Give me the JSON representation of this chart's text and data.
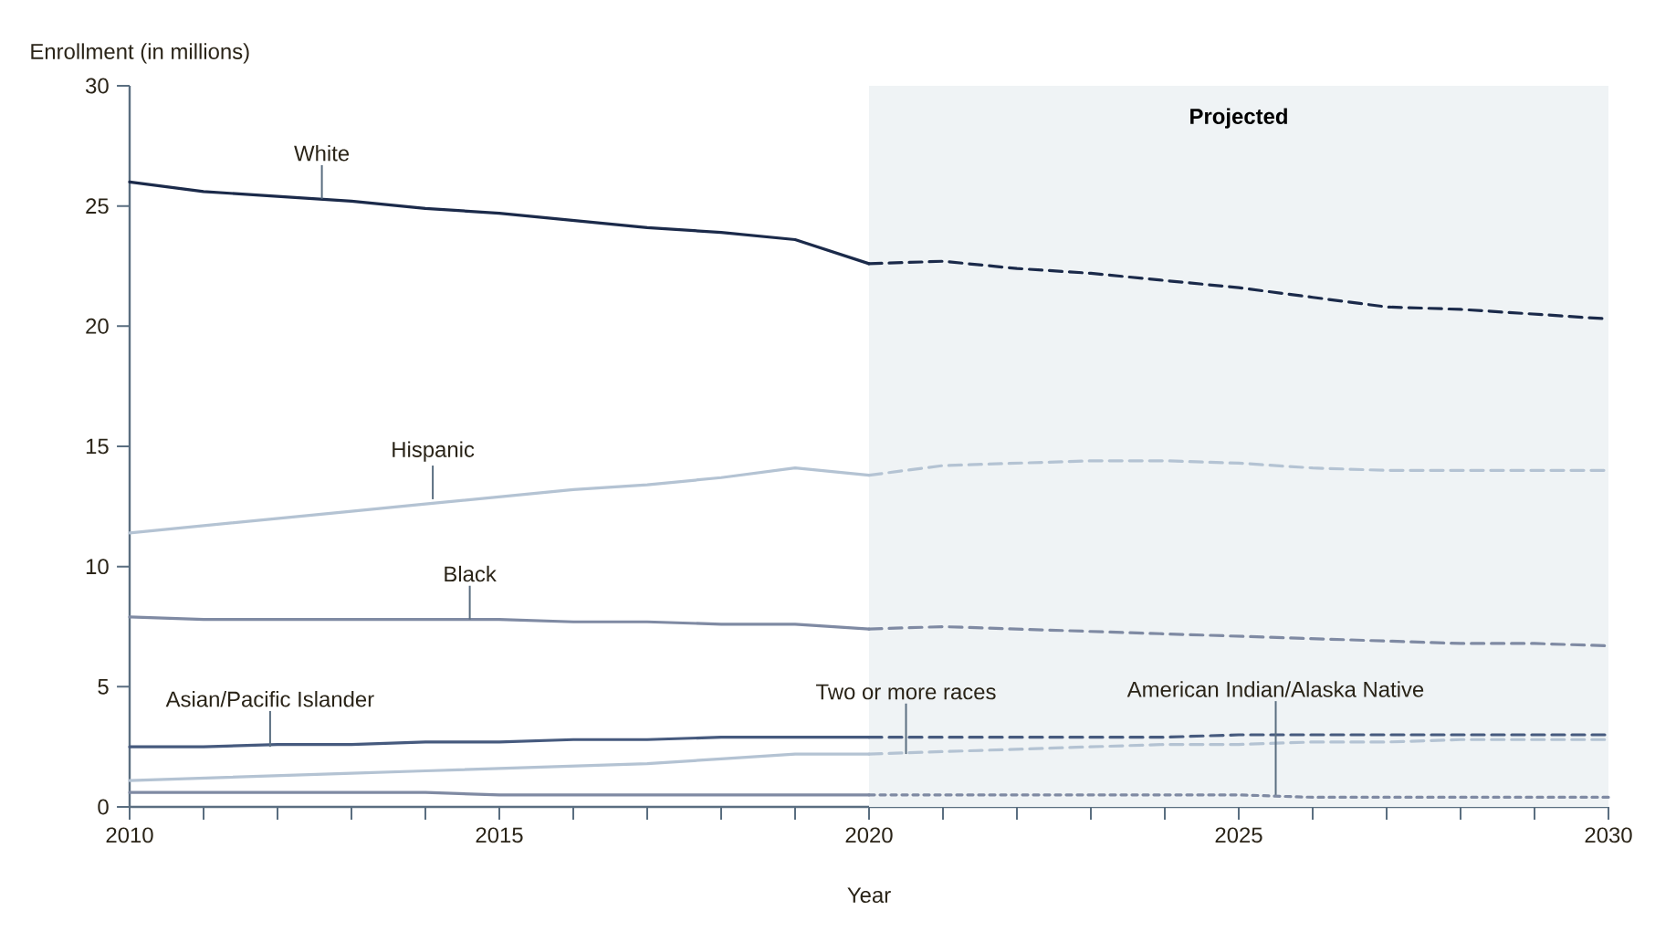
{
  "chart_data": {
    "type": "line",
    "xlabel": "Year",
    "ylabel": "Enrollment (in millions)",
    "xlim": [
      2010,
      2030
    ],
    "ylim": [
      0,
      30
    ],
    "xticks": [
      2010,
      {
        "value": 2011,
        "label": null
      },
      {
        "value": 2012,
        "label": null
      },
      {
        "value": 2013,
        "label": null
      },
      {
        "value": 2014,
        "label": null
      },
      2015,
      {
        "value": 2016,
        "label": null
      },
      {
        "value": 2017,
        "label": null
      },
      {
        "value": 2018,
        "label": null
      },
      {
        "value": 2019,
        "label": null
      },
      2020,
      {
        "value": 2021,
        "label": null
      },
      {
        "value": 2022,
        "label": null
      },
      {
        "value": 2023,
        "label": null
      },
      {
        "value": 2024,
        "label": null
      },
      2025,
      {
        "value": 2026,
        "label": null
      },
      {
        "value": 2027,
        "label": null
      },
      {
        "value": 2028,
        "label": null
      },
      {
        "value": 2029,
        "label": null
      },
      2030
    ],
    "yticks": [
      0,
      5,
      10,
      15,
      20,
      25,
      30
    ],
    "grid": false,
    "legend": false,
    "bands": [
      {
        "axis": "x",
        "from": 2020,
        "to": 2030,
        "label": "Projected",
        "color": "#eff3f5"
      }
    ],
    "series": [
      {
        "color": "#1b2a4a",
        "line_style": "solid",
        "x": [
          2010,
          2011,
          2012,
          2013,
          2014,
          2015,
          2016,
          2017,
          2018,
          2019,
          2020
        ],
        "values": [
          26.0,
          25.6,
          25.4,
          25.2,
          24.9,
          24.7,
          24.4,
          24.1,
          23.9,
          23.6,
          22.6
        ]
      },
      {
        "color": "#1b2a4a",
        "line_style": "dashed",
        "x": [
          2020,
          2021,
          2022,
          2023,
          2024,
          2025,
          2026,
          2027,
          2028,
          2029,
          2030
        ],
        "values": [
          22.6,
          22.7,
          22.4,
          22.2,
          21.9,
          21.6,
          21.2,
          20.8,
          20.7,
          20.5,
          20.3
        ]
      },
      {
        "color": "#b4c3d3",
        "line_style": "solid",
        "x": [
          2010,
          2011,
          2012,
          2013,
          2014,
          2015,
          2016,
          2017,
          2018,
          2019,
          2020
        ],
        "values": [
          11.4,
          11.7,
          12.0,
          12.3,
          12.6,
          12.9,
          13.2,
          13.4,
          13.7,
          14.1,
          13.8
        ]
      },
      {
        "color": "#b4c3d3",
        "line_style": "dashed",
        "x": [
          2020,
          2021,
          2022,
          2023,
          2024,
          2025,
          2026,
          2027,
          2028,
          2029,
          2030
        ],
        "values": [
          13.8,
          14.2,
          14.3,
          14.4,
          14.4,
          14.3,
          14.1,
          14.0,
          14.0,
          14.0,
          14.0
        ]
      },
      {
        "color": "#7f8aa3",
        "line_style": "solid",
        "x": [
          2010,
          2011,
          2012,
          2013,
          2014,
          2015,
          2016,
          2017,
          2018,
          2019,
          2020
        ],
        "values": [
          7.9,
          7.8,
          7.8,
          7.8,
          7.8,
          7.8,
          7.7,
          7.7,
          7.6,
          7.6,
          7.4
        ]
      },
      {
        "color": "#7f8aa3",
        "line_style": "dashed",
        "x": [
          2020,
          2021,
          2022,
          2023,
          2024,
          2025,
          2026,
          2027,
          2028,
          2029,
          2030
        ],
        "values": [
          7.4,
          7.5,
          7.4,
          7.3,
          7.2,
          7.1,
          7.0,
          6.9,
          6.8,
          6.8,
          6.7
        ]
      },
      {
        "color": "#465a7e",
        "line_style": "solid",
        "x": [
          2010,
          2011,
          2012,
          2013,
          2014,
          2015,
          2016,
          2017,
          2018,
          2019,
          2020
        ],
        "values": [
          2.5,
          2.5,
          2.6,
          2.6,
          2.7,
          2.7,
          2.8,
          2.8,
          2.9,
          2.9,
          2.9
        ]
      },
      {
        "color": "#465a7e",
        "line_style": "dashed",
        "x": [
          2020,
          2021,
          2022,
          2023,
          2024,
          2025,
          2026,
          2027,
          2028,
          2029,
          2030
        ],
        "values": [
          2.9,
          2.9,
          2.9,
          2.9,
          2.9,
          3.0,
          3.0,
          3.0,
          3.0,
          3.0,
          3.0
        ]
      },
      {
        "color": "#b4c3d3",
        "line_style": "solid",
        "x": [
          2010,
          2011,
          2012,
          2013,
          2014,
          2015,
          2016,
          2017,
          2018,
          2019,
          2020
        ],
        "values": [
          1.1,
          1.2,
          1.3,
          1.4,
          1.5,
          1.6,
          1.7,
          1.8,
          2.0,
          2.2,
          2.2
        ]
      },
      {
        "color": "#b4c3d3",
        "line_style": "dashed",
        "x": [
          2020,
          2021,
          2022,
          2023,
          2024,
          2025,
          2026,
          2027,
          2028,
          2029,
          2030
        ],
        "values": [
          2.2,
          2.3,
          2.4,
          2.5,
          2.6,
          2.6,
          2.7,
          2.7,
          2.8,
          2.8,
          2.8
        ]
      },
      {
        "color": "#7f8aa3",
        "line_style": "solid",
        "x": [
          2010,
          2011,
          2012,
          2013,
          2014,
          2015,
          2016,
          2017,
          2018,
          2019,
          2020
        ],
        "values": [
          0.6,
          0.6,
          0.6,
          0.6,
          0.6,
          0.5,
          0.5,
          0.5,
          0.5,
          0.5,
          0.5
        ]
      },
      {
        "color": "#7f8aa3",
        "line_style": "dotted",
        "x": [
          2020,
          2021,
          2022,
          2023,
          2024,
          2025,
          2026,
          2027,
          2028,
          2029,
          2030
        ],
        "values": [
          0.5,
          0.5,
          0.5,
          0.5,
          0.5,
          0.5,
          0.4,
          0.4,
          0.4,
          0.4,
          0.4
        ]
      }
    ],
    "annotations": [
      {
        "text": "White",
        "x": 2012.6,
        "y": 25.3
      },
      {
        "text": "Hispanic",
        "x": 2014.1,
        "y": 12.8
      },
      {
        "text": "Black",
        "x": 2014.6,
        "y": 7.8
      },
      {
        "text": "Asian/Pacific Islander",
        "x": 2011.9,
        "y": 2.5
      },
      {
        "text": "Two or more races",
        "x": 2020.5,
        "y": 2.2
      },
      {
        "text": "American Indian/Alaska Native",
        "x": 2025.5,
        "y": 0.5
      }
    ]
  }
}
